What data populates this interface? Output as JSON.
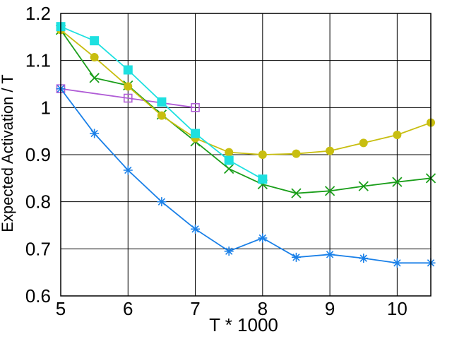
{
  "chart_data": {
    "type": "line",
    "title": "",
    "xlabel": "T * 1000",
    "ylabel": "Expected Activation / T",
    "xlim": [
      5,
      10.5
    ],
    "ylim": [
      0.6,
      1.2
    ],
    "xticks": [
      5,
      6,
      7,
      8,
      9,
      10
    ],
    "xtick_labels": [
      "5",
      "6",
      "7",
      "8",
      "9",
      "10"
    ],
    "yticks": [
      0.6,
      0.7,
      0.8,
      0.9,
      1.0,
      1.1,
      1.2
    ],
    "ytick_labels": [
      "0.6",
      "0.7",
      "0.8",
      "0.9",
      "1",
      "1.1",
      "1.2"
    ],
    "grid": true,
    "legend": "none",
    "series": [
      {
        "color": "#b05cd6",
        "marker": "open-square",
        "x": [
          5,
          6,
          7
        ],
        "y": [
          1.04,
          1.02,
          1.0
        ]
      },
      {
        "color": "#1a80e8",
        "marker": "asterisk",
        "x": [
          5,
          5.5,
          6,
          6.5,
          7,
          7.5,
          8,
          8.5,
          9,
          9.5,
          10,
          10.5
        ],
        "y": [
          1.04,
          0.945,
          0.867,
          0.8,
          0.742,
          0.695,
          0.723,
          0.682,
          0.688,
          0.68,
          0.67,
          0.67
        ]
      },
      {
        "color": "#1a9e1a",
        "marker": "x",
        "x": [
          5,
          5.5,
          6,
          6.5,
          7,
          7.5,
          8,
          8.5,
          9,
          9.5,
          10,
          10.5
        ],
        "y": [
          1.165,
          1.063,
          1.047,
          0.985,
          0.928,
          0.87,
          0.837,
          0.818,
          0.823,
          0.833,
          0.842,
          0.85
        ]
      },
      {
        "color": "#c8be10",
        "marker": "filled-circle",
        "x": [
          5,
          5.5,
          6,
          6.5,
          7,
          7.5,
          8,
          8.5,
          9,
          9.5,
          10,
          10.5
        ],
        "y": [
          1.165,
          1.107,
          1.045,
          0.983,
          0.935,
          0.905,
          0.9,
          0.902,
          0.908,
          0.925,
          0.942,
          0.968
        ]
      },
      {
        "color": "#1ee0e0",
        "marker": "filled-square",
        "x": [
          5,
          5.5,
          6,
          6.5,
          7,
          7.5,
          8
        ],
        "y": [
          1.172,
          1.142,
          1.08,
          1.012,
          0.945,
          0.888,
          0.848
        ]
      }
    ]
  }
}
